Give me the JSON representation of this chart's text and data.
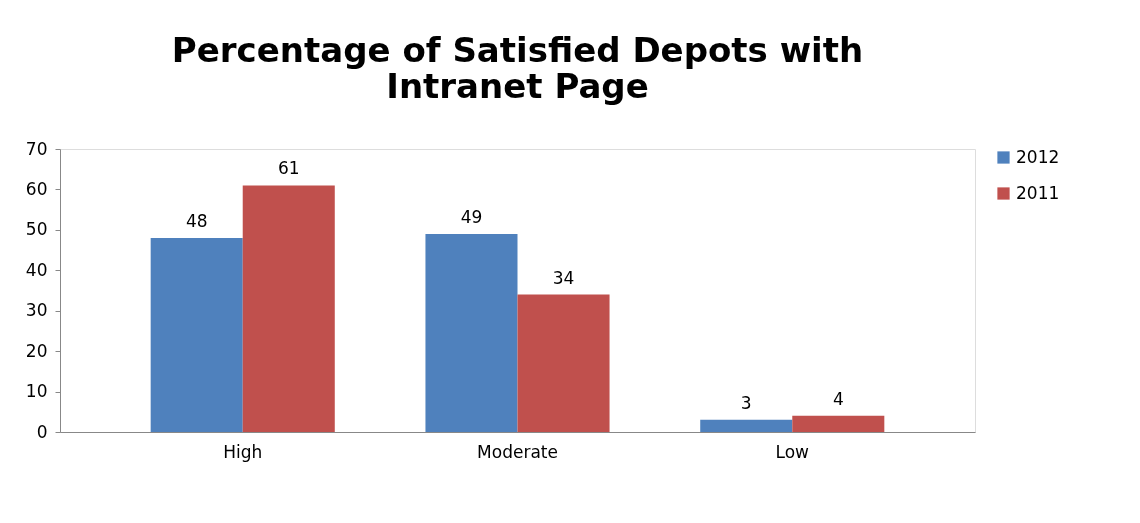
{
  "chart_data": {
    "type": "bar",
    "title": "Percentage of Satisfied Depots with Intranet Page",
    "categories": [
      "High",
      "Moderate",
      "Low"
    ],
    "series": [
      {
        "name": "2012",
        "color": "#4f81bd",
        "values": [
          48,
          49,
          3
        ]
      },
      {
        "name": "2011",
        "color": "#c0504d",
        "values": [
          61,
          34,
          4
        ]
      }
    ],
    "ylim": [
      0,
      70
    ],
    "yticks": [
      0,
      10,
      20,
      30,
      40,
      50,
      60,
      70
    ],
    "grid": false,
    "legend": "right",
    "data_labels": true
  }
}
